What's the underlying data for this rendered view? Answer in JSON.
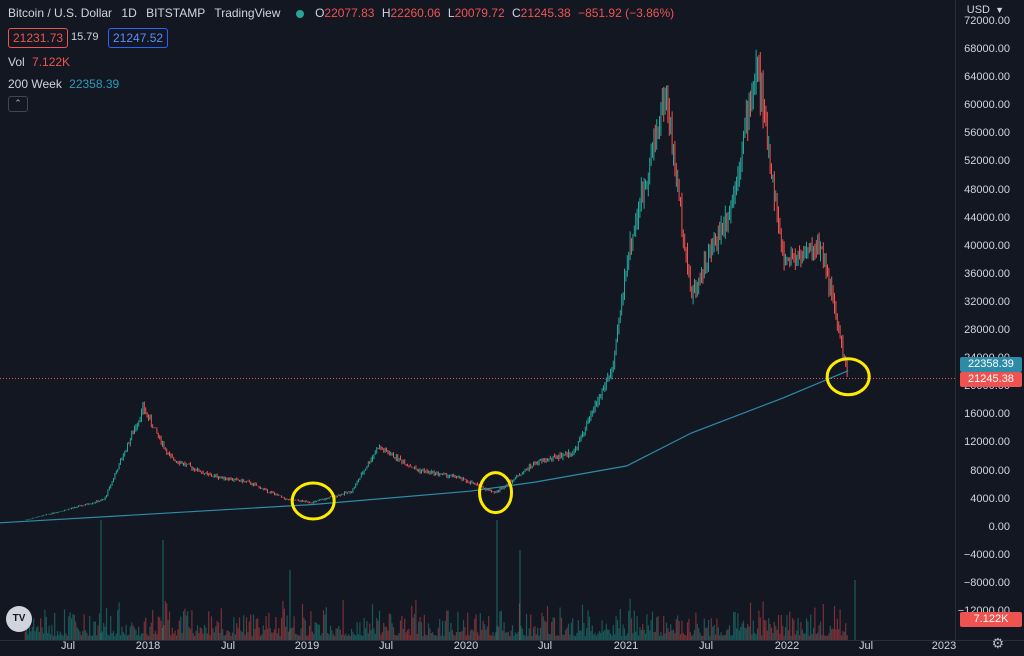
{
  "header": {
    "symbol": "Bitcoin / U.S. Dollar",
    "interval": "1D",
    "exchange": "BITSTAMP",
    "source": "TradingView",
    "open_label": "O",
    "open": "22077.83",
    "high_label": "H",
    "high": "22260.06",
    "low_label": "L",
    "low": "20079.72",
    "close_label": "C",
    "close": "21245.38",
    "change": "−851.92 (−3.86%)"
  },
  "quote": {
    "bid": "21231.73",
    "spread": "15.79",
    "ask": "21247.52"
  },
  "indicators": {
    "vol_label": "Vol",
    "vol_value": "7.122K",
    "ma_label": "200 Week",
    "ma_value": "22358.39"
  },
  "currency": "USD",
  "currency_icon": "chevron-down-icon",
  "price_axis": {
    "ticks": [
      "72000.00",
      "68000.00",
      "64000.00",
      "60000.00",
      "56000.00",
      "52000.00",
      "48000.00",
      "44000.00",
      "40000.00",
      "36000.00",
      "32000.00",
      "28000.00",
      "24000.00",
      "20000.00",
      "16000.00",
      "12000.00",
      "8000.00",
      "4000.00",
      "0.00",
      "−4000.00",
      "−8000.00",
      "−12000.00"
    ],
    "ma_tag": "22358.39",
    "last_tag": "21245.38",
    "vol_tag": "7.122K"
  },
  "time_axis": [
    "Jul",
    "2018",
    "Jul",
    "2019",
    "Jul",
    "2020",
    "Jul",
    "2021",
    "Jul",
    "2022",
    "Jul",
    "2023"
  ],
  "colors": {
    "up": "#26a69a",
    "down": "#ef5350",
    "ma": "#2e8ba8",
    "circle": "#ffeb00",
    "background": "#131722"
  },
  "logo": "TV",
  "settings_icon": "gear-icon",
  "chart_data": {
    "type": "candlestick",
    "ylim": [
      -12000,
      72000
    ],
    "series": [
      {
        "name": "Bitcoin / U.S. Dollar",
        "x": [
          "2017-03",
          "2017-06",
          "2017-09",
          "2017-12",
          "2018-02",
          "2018-05",
          "2018-08",
          "2018-11",
          "2019-01",
          "2019-04",
          "2019-06",
          "2019-09",
          "2019-12",
          "2020-03",
          "2020-06",
          "2020-09",
          "2020-12",
          "2021-01",
          "2021-04",
          "2021-06",
          "2021-09",
          "2021-11",
          "2022-01",
          "2022-04",
          "2022-06"
        ],
        "values": [
          1100,
          2500,
          4000,
          17000,
          10000,
          7500,
          6500,
          4000,
          3600,
          5200,
          11500,
          8200,
          7200,
          5000,
          9200,
          10800,
          23000,
          38000,
          62000,
          33000,
          46000,
          66000,
          38000,
          40000,
          21245
        ]
      },
      {
        "name": "200 Week",
        "x": [
          "2017-01",
          "2018-01",
          "2019-01",
          "2020-01",
          "2020-06",
          "2021-01",
          "2021-06",
          "2022-01",
          "2022-06"
        ],
        "values": [
          700,
          2000,
          3300,
          5200,
          6500,
          8800,
          13500,
          18500,
          22358
        ]
      }
    ]
  }
}
